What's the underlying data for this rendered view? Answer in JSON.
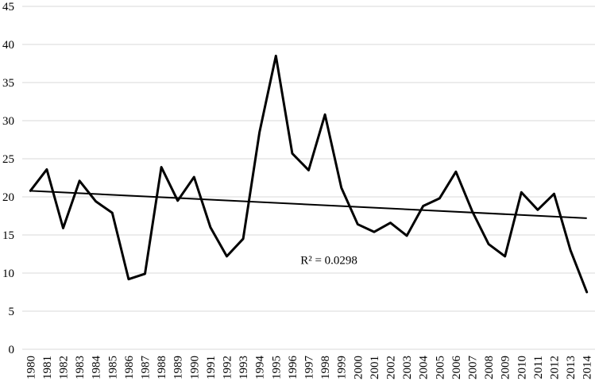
{
  "chart_data": {
    "type": "line",
    "title": "",
    "xlabel": "",
    "ylabel": "",
    "ylim": [
      0,
      45
    ],
    "ytick_step": 5,
    "grid": true,
    "categories": [
      "1980",
      "1981",
      "1982",
      "1983",
      "1984",
      "1985",
      "1986",
      "1987",
      "1988",
      "1989",
      "1990",
      "1991",
      "1992",
      "1993",
      "1994",
      "1995",
      "1996",
      "1997",
      "1998",
      "1999",
      "2000",
      "2001",
      "2002",
      "2003",
      "2004",
      "2005",
      "2006",
      "2007",
      "2008",
      "2009",
      "2010",
      "2011",
      "2012",
      "2013",
      "2014"
    ],
    "series": [
      {
        "values": [
          20.8,
          23.6,
          15.9,
          22.1,
          19.4,
          17.9,
          9.2,
          9.9,
          23.9,
          19.5,
          22.6,
          16.0,
          12.2,
          14.5,
          28.5,
          38.5,
          25.7,
          23.5,
          30.8,
          21.2,
          16.4,
          15.4,
          16.6,
          14.9,
          18.8,
          19.8,
          23.3,
          18.1,
          13.8,
          12.2,
          20.6,
          18.3,
          20.4,
          13.0,
          7.5
        ],
        "color": "#000000"
      }
    ],
    "trendline": {
      "type": "linear",
      "start": 20.8,
      "end": 17.2,
      "color": "#000000"
    },
    "annotations": [
      {
        "text": "R² = 0.0298",
        "at_year": "1996.5",
        "at_value": 11.7
      }
    ]
  }
}
